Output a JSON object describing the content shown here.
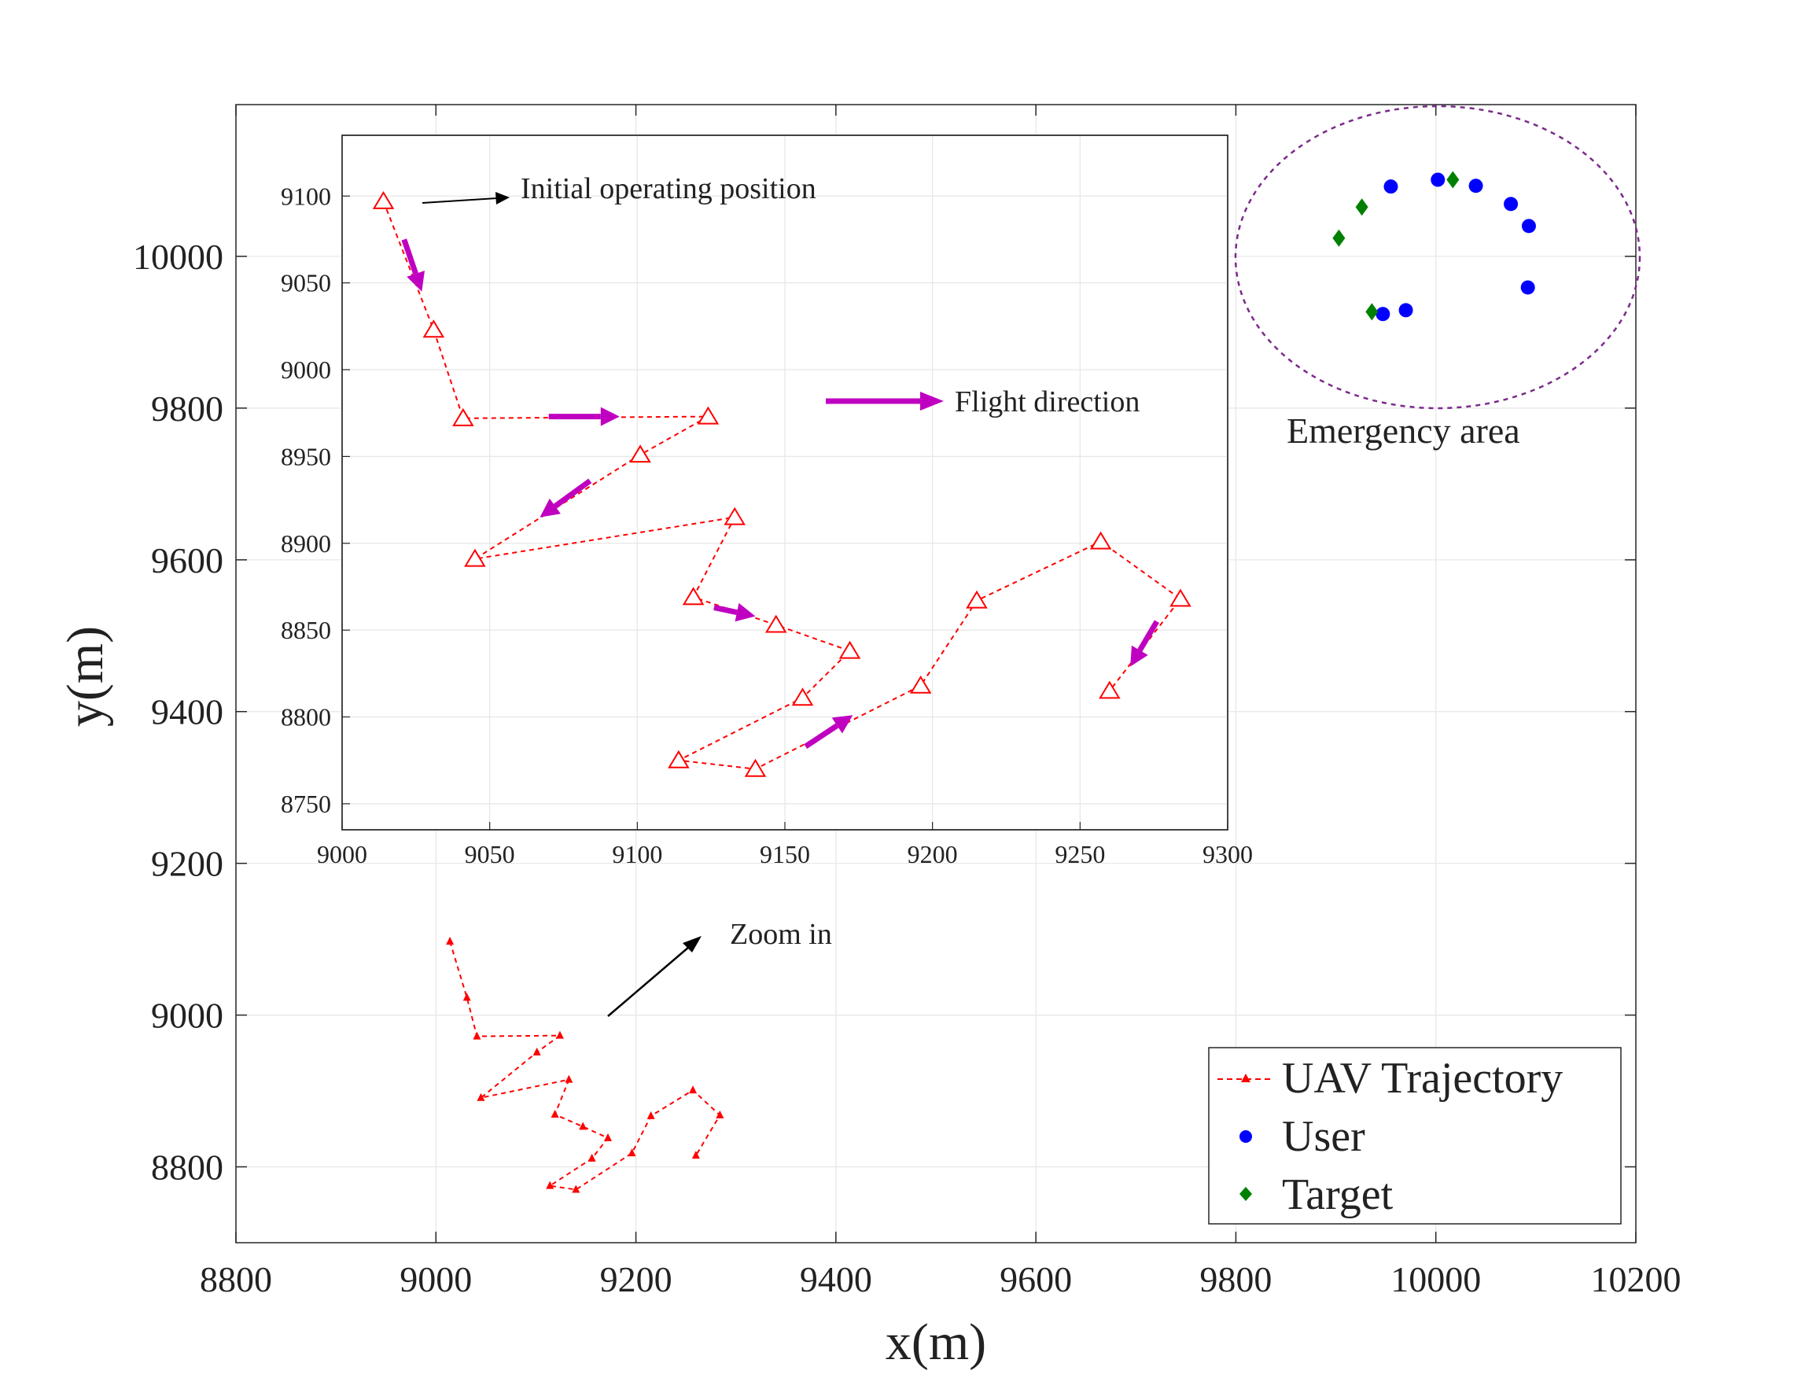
{
  "chart_data": {
    "type": "scatter",
    "main": {
      "xlabel": "x(m)",
      "ylabel": "y(m)",
      "xlim": [
        8800,
        10200
      ],
      "ylim": [
        8700,
        10200
      ],
      "xticks": [
        8800,
        9000,
        9200,
        9400,
        9600,
        9800,
        10000,
        10200
      ],
      "yticks": [
        8800,
        9000,
        9200,
        9400,
        9600,
        9800,
        10000
      ],
      "grid": true,
      "legend_position": "bottom-right",
      "series": [
        {
          "name": "UAV Trajectory",
          "style": "red dashed line with triangle markers",
          "color": "#ff0000",
          "x": [
            9014,
            9031,
            9041,
            9124,
            9101,
            9045,
            9133,
            9119,
            9147,
            9172,
            9156,
            9114,
            9140,
            9196,
            9215,
            9257,
            9284,
            9260
          ],
          "y": [
            9097,
            9023,
            8972,
            8973,
            8951,
            8891,
            8915,
            8869,
            8853,
            8838,
            8811,
            8775,
            8770,
            8818,
            8867,
            8901,
            8868,
            8815
          ]
        },
        {
          "name": "User",
          "style": "blue filled circles",
          "color": "#0000ff",
          "x": [
            9955,
            10002,
            10040,
            10075,
            10093,
            10092,
            9970,
            9947
          ],
          "y": [
            10092,
            10101,
            10093,
            10069,
            10040,
            9959,
            9929,
            9924
          ]
        },
        {
          "name": "Target",
          "style": "green filled diamonds",
          "color": "#008000",
          "x": [
            10017,
            9926,
            9903,
            9936
          ],
          "y": [
            10101,
            10065,
            10024,
            9927
          ]
        }
      ],
      "annotations": {
        "emergency_area_label": "Emergency area",
        "emergency_area_color": "#7b2a8a",
        "zoom_label": "Zoom in"
      }
    },
    "inset": {
      "xlim": [
        9000,
        9300
      ],
      "ylim": [
        8735,
        9135
      ],
      "xticks": [
        9000,
        9050,
        9100,
        9150,
        9200,
        9250,
        9300
      ],
      "yticks": [
        8750,
        8800,
        8850,
        8900,
        8950,
        9000,
        9050,
        9100
      ],
      "grid": true,
      "series_ref": "UAV Trajectory",
      "marker": "open triangle",
      "flight_arrows_color": "#c000c0",
      "flight_arrows": [
        {
          "from": [
            9021,
            9075
          ],
          "to": [
            9027,
            9045
          ]
        },
        {
          "from": [
            9070,
            8973
          ],
          "to": [
            9094,
            8973
          ]
        },
        {
          "from": [
            9084,
            8936
          ],
          "to": [
            9067,
            8915
          ]
        },
        {
          "from": [
            9126,
            8863
          ],
          "to": [
            9140,
            8858
          ]
        },
        {
          "from": [
            9157,
            8783
          ],
          "to": [
            9173,
            8801
          ]
        },
        {
          "from": [
            9276,
            8855
          ],
          "to": [
            9267,
            8829
          ]
        }
      ],
      "annotations": {
        "initial_label": "Initial operating position",
        "flight_direction_label": "Flight direction"
      }
    }
  }
}
